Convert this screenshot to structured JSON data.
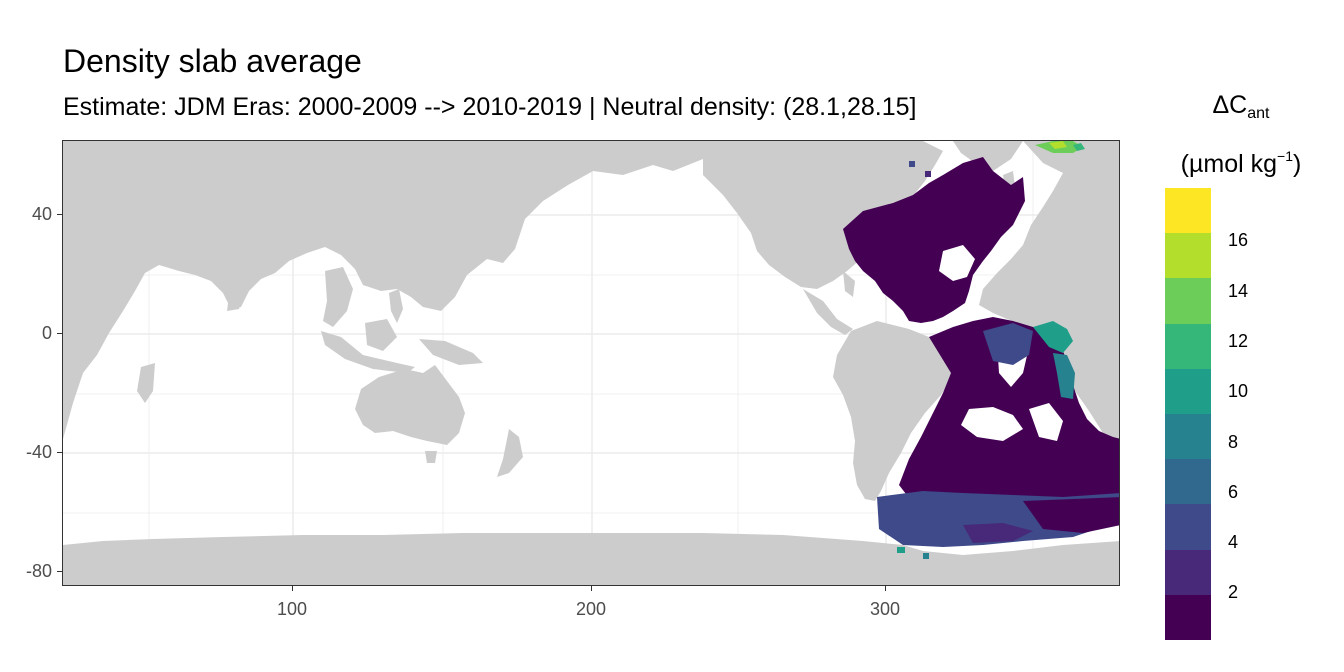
{
  "title": "Density slab average",
  "subtitle": "Estimate: JDM Eras: 2000-2009 --> 2010-2019 | Neutral density: (28.1,28.15]",
  "legend": {
    "symbol": "ΔC",
    "subscript": "ant",
    "unit_open": "(µmol kg",
    "unit_sup": "−1",
    "unit_close": ")",
    "labels": [
      "16",
      "14",
      "12",
      "10",
      "8",
      "6",
      "4",
      "2"
    ],
    "colors_top_to_bottom": [
      "#FDE725",
      "#B4DE2C",
      "#6DCD59",
      "#35B779",
      "#1F9E89",
      "#26828E",
      "#31688E",
      "#3E4A89",
      "#482878",
      "#440154"
    ]
  },
  "axes": {
    "x_ticks": [
      "100",
      "200",
      "300"
    ],
    "y_ticks": [
      "40",
      "0",
      "-40",
      "-80"
    ],
    "xlim": [
      20,
      380
    ],
    "ylim": [
      -85,
      65
    ]
  },
  "colors": {
    "land": "#CCCCCC",
    "ocean": "#FFFFFF",
    "grid": "#EBEBEB"
  }
}
